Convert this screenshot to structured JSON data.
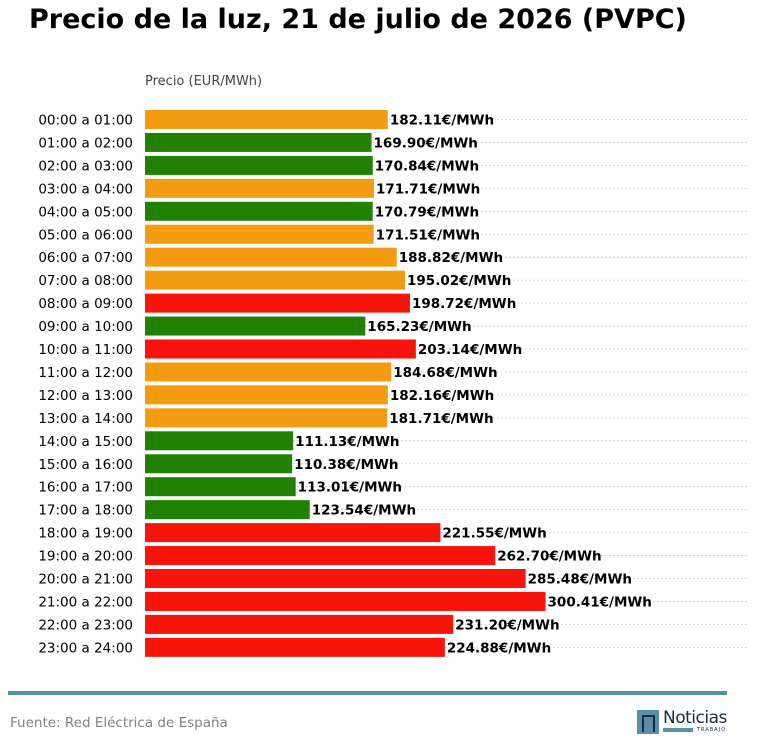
{
  "header": {
    "title": "Precio de la luz, 21 de julio de 2026 (PVPC)"
  },
  "footer": {
    "source": "Fuente: Red Eléctrica de España",
    "logo_word": "Noticias",
    "logo_sub": "TRABAJO"
  },
  "colors": {
    "high": "#f7150b",
    "medium": "#f39c12",
    "low": "#208103",
    "footer_line": "#5b8fa8"
  },
  "chart_data": {
    "type": "bar",
    "orientation": "horizontal",
    "title": "Precio de la luz, 21 de julio de 2026 (PVPC)",
    "ylabel": "Precio (EUR/MWh)",
    "value_suffix": "€/MWh",
    "xlim": [
      0,
      400
    ],
    "grid": "horizontal dotted",
    "categories": [
      "00:00 a 01:00",
      "01:00 a 02:00",
      "02:00 a 03:00",
      "03:00 a 04:00",
      "04:00 a 05:00",
      "05:00 a 06:00",
      "06:00 a 07:00",
      "07:00 a 08:00",
      "08:00 a 09:00",
      "09:00 a 10:00",
      "10:00 a 11:00",
      "11:00 a 12:00",
      "12:00 a 13:00",
      "13:00 a 14:00",
      "14:00 a 15:00",
      "15:00 a 16:00",
      "16:00 a 17:00",
      "17:00 a 18:00",
      "18:00 a 19:00",
      "19:00 a 20:00",
      "20:00 a 21:00",
      "21:00 a 22:00",
      "22:00 a 23:00",
      "23:00 a 24:00"
    ],
    "values": [
      182.11,
      169.9,
      170.84,
      171.71,
      170.79,
      171.51,
      188.82,
      195.02,
      198.72,
      165.23,
      203.14,
      184.68,
      182.16,
      181.71,
      111.13,
      110.38,
      113.01,
      123.54,
      221.55,
      262.7,
      285.48,
      300.41,
      231.2,
      224.88
    ],
    "value_labels": [
      "182.11€/MWh",
      "169.90€/MWh",
      "170.84€/MWh",
      "171.71€/MWh",
      "170.79€/MWh",
      "171.51€/MWh",
      "188.82€/MWh",
      "195.02€/MWh",
      "198.72€/MWh",
      "165.23€/MWh",
      "203.14€/MWh",
      "184.68€/MWh",
      "182.16€/MWh",
      "181.71€/MWh",
      "111.13€/MWh",
      "110.38€/MWh",
      "113.01€/MWh",
      "123.54€/MWh",
      "221.55€/MWh",
      "262.70€/MWh",
      "285.48€/MWh",
      "300.41€/MWh",
      "231.20€/MWh",
      "224.88€/MWh"
    ],
    "bar_colors": [
      "#f39c12",
      "#208103",
      "#208103",
      "#f39c12",
      "#208103",
      "#f39c12",
      "#f39c12",
      "#f39c12",
      "#f7150b",
      "#208103",
      "#f7150b",
      "#f39c12",
      "#f39c12",
      "#f39c12",
      "#208103",
      "#208103",
      "#208103",
      "#208103",
      "#f7150b",
      "#f7150b",
      "#f7150b",
      "#f7150b",
      "#f7150b",
      "#f7150b"
    ]
  }
}
